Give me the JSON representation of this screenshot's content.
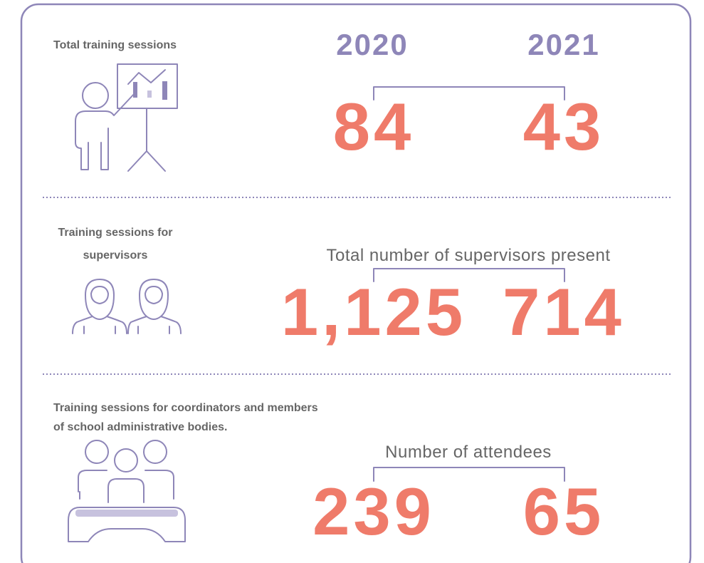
{
  "years": [
    "2020",
    "2021"
  ],
  "sections": [
    {
      "label": [
        "Total training sessions"
      ],
      "values": [
        "84",
        "43"
      ]
    },
    {
      "label": [
        "Training sessions for",
        "supervisors"
      ],
      "caption": "Total number of supervisors present",
      "values": [
        "1,125",
        "714"
      ]
    },
    {
      "label": [
        "Training sessions for coordinators and members",
        "of school administrative bodies."
      ],
      "caption": "Number of attendees",
      "values": [
        "239",
        "65"
      ]
    }
  ]
}
